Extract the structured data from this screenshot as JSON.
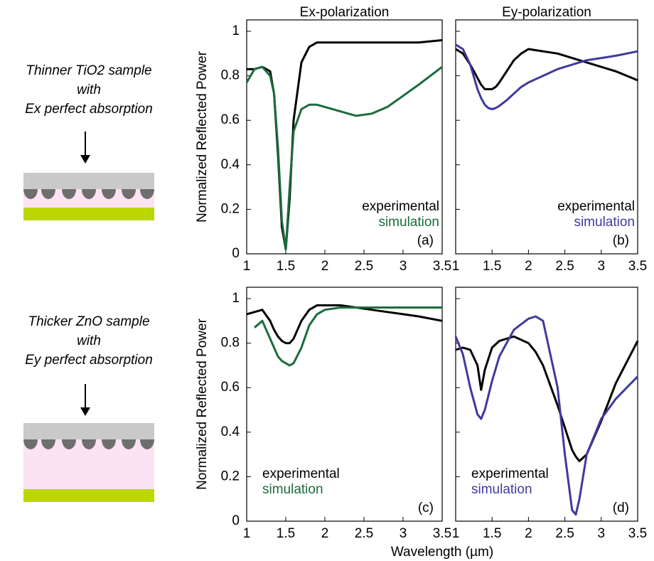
{
  "samples": [
    {
      "lines": [
        "Thinner TiO2 sample",
        "with",
        "Ex perfect absorption"
      ]
    },
    {
      "lines": [
        "Thicker ZnO sample",
        "with",
        "Ey perfect absorption"
      ]
    }
  ],
  "figure": {
    "xlabel": "Wavelength (µm)"
  },
  "chart_data": [
    {
      "type": "line",
      "title": "Ex-polarization",
      "ylabel": "Normalized Reflected Power",
      "annotation": "(a)",
      "legend": "lower right",
      "ytick_labels": true,
      "x": [
        1.0,
        1.1,
        1.2,
        1.3,
        1.35,
        1.4,
        1.45,
        1.5,
        1.55,
        1.6,
        1.7,
        1.8,
        1.9,
        2.0,
        2.2,
        2.4,
        2.6,
        2.8,
        3.0,
        3.2,
        3.5
      ],
      "series": [
        {
          "name": "experimental",
          "color": "#000000",
          "values": [
            0.83,
            0.83,
            0.84,
            0.82,
            0.72,
            0.45,
            0.12,
            0.02,
            0.25,
            0.6,
            0.86,
            0.93,
            0.95,
            0.95,
            0.95,
            0.95,
            0.95,
            0.95,
            0.95,
            0.95,
            0.96
          ]
        },
        {
          "name": "simulation",
          "color": "#1b6b3c",
          "values": [
            0.77,
            0.83,
            0.84,
            0.8,
            0.72,
            0.48,
            0.15,
            0.02,
            0.3,
            0.55,
            0.65,
            0.67,
            0.67,
            0.66,
            0.64,
            0.62,
            0.63,
            0.66,
            0.71,
            0.76,
            0.84
          ]
        }
      ],
      "xlim": [
        1,
        3.5
      ],
      "xticks": [
        1,
        1.5,
        2,
        2.5,
        3,
        3.5
      ],
      "ylim": [
        0,
        1
      ],
      "yticks": [
        0,
        0.2,
        0.4,
        0.6,
        0.8,
        1
      ]
    },
    {
      "type": "line",
      "title": "Ey-polarization",
      "annotation": "(b)",
      "legend": "lower right",
      "ytick_labels": false,
      "x": [
        1.0,
        1.1,
        1.2,
        1.3,
        1.35,
        1.4,
        1.45,
        1.5,
        1.55,
        1.6,
        1.7,
        1.8,
        1.9,
        2.0,
        2.2,
        2.4,
        2.6,
        2.8,
        3.0,
        3.2,
        3.5
      ],
      "series": [
        {
          "name": "experimental",
          "color": "#000000",
          "values": [
            0.92,
            0.9,
            0.85,
            0.79,
            0.76,
            0.74,
            0.74,
            0.74,
            0.75,
            0.77,
            0.82,
            0.87,
            0.9,
            0.92,
            0.91,
            0.9,
            0.88,
            0.86,
            0.84,
            0.82,
            0.78
          ]
        },
        {
          "name": "simulation",
          "color": "#3f3a9e",
          "values": [
            0.94,
            0.92,
            0.85,
            0.74,
            0.7,
            0.67,
            0.655,
            0.65,
            0.655,
            0.665,
            0.69,
            0.72,
            0.75,
            0.77,
            0.8,
            0.83,
            0.85,
            0.87,
            0.88,
            0.89,
            0.91
          ]
        }
      ],
      "xlim": [
        1,
        3.5
      ],
      "xticks": [
        1,
        1.5,
        2,
        2.5,
        3,
        3.5
      ],
      "ylim": [
        0,
        1
      ],
      "yticks": [
        0,
        0.2,
        0.4,
        0.6,
        0.8,
        1
      ]
    },
    {
      "type": "line",
      "ylabel": "Normalized Reflected Power",
      "annotation": "(c)",
      "legend": "lower left",
      "ytick_labels": true,
      "x": [
        1.0,
        1.1,
        1.2,
        1.3,
        1.35,
        1.4,
        1.45,
        1.5,
        1.55,
        1.6,
        1.7,
        1.8,
        1.9,
        2.0,
        2.2,
        2.4,
        2.6,
        2.8,
        3.0,
        3.2,
        3.5
      ],
      "series": [
        {
          "name": "experimental",
          "color": "#000000",
          "values": [
            0.93,
            0.94,
            0.95,
            0.9,
            0.86,
            0.83,
            0.81,
            0.8,
            0.8,
            0.82,
            0.9,
            0.95,
            0.97,
            0.97,
            0.97,
            0.96,
            0.95,
            0.94,
            0.93,
            0.92,
            0.9
          ]
        },
        {
          "name": "simulation",
          "color": "#1b6b3c",
          "values": [
            null,
            0.87,
            0.9,
            0.82,
            0.78,
            0.74,
            0.72,
            0.71,
            0.7,
            0.71,
            0.78,
            0.88,
            0.93,
            0.95,
            0.96,
            0.96,
            0.96,
            0.96,
            0.96,
            0.96,
            0.96
          ]
        }
      ],
      "xlim": [
        1,
        3.5
      ],
      "xticks": [
        1,
        1.5,
        2,
        2.5,
        3,
        3.5
      ],
      "ylim": [
        0,
        1
      ],
      "yticks": [
        0,
        0.2,
        0.4,
        0.6,
        0.8,
        1
      ]
    },
    {
      "type": "line",
      "annotation": "(d)",
      "legend": "lower left",
      "ytick_labels": false,
      "x": [
        1.0,
        1.1,
        1.2,
        1.3,
        1.35,
        1.4,
        1.5,
        1.6,
        1.8,
        2.0,
        2.1,
        2.2,
        2.4,
        2.5,
        2.6,
        2.65,
        2.7,
        2.8,
        3.0,
        3.2,
        3.5
      ],
      "series": [
        {
          "name": "experimental",
          "color": "#000000",
          "values": [
            0.77,
            0.78,
            0.77,
            0.7,
            0.59,
            0.68,
            0.78,
            0.81,
            0.83,
            0.8,
            0.76,
            0.7,
            0.52,
            0.42,
            0.32,
            0.29,
            0.27,
            0.3,
            0.45,
            0.62,
            0.81
          ]
        },
        {
          "name": "simulation",
          "color": "#3f3a9e",
          "values": [
            0.83,
            0.75,
            0.6,
            0.48,
            0.46,
            0.5,
            0.63,
            0.74,
            0.86,
            0.91,
            0.92,
            0.9,
            0.6,
            0.3,
            0.05,
            0.03,
            0.1,
            0.3,
            0.46,
            0.55,
            0.65
          ]
        }
      ],
      "xlim": [
        1,
        3.5
      ],
      "xticks": [
        1,
        1.5,
        2,
        2.5,
        3,
        3.5
      ],
      "ylim": [
        0,
        1
      ],
      "yticks": [
        0,
        0.2,
        0.4,
        0.6,
        0.8,
        1
      ]
    }
  ]
}
